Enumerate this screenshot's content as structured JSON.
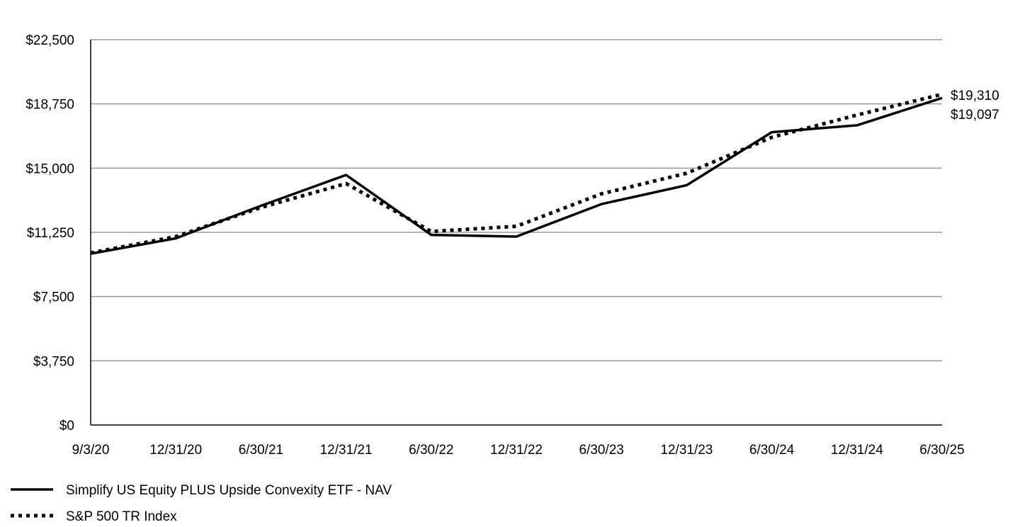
{
  "chart_data": {
    "type": "line",
    "title": "",
    "xlabel": "",
    "ylabel": "",
    "categories": [
      "9/3/20",
      "12/31/20",
      "6/30/21",
      "12/31/21",
      "6/30/22",
      "12/31/22",
      "6/30/23",
      "12/31/23",
      "6/30/24",
      "12/31/24",
      "6/30/25"
    ],
    "y_ticks": [
      "$0",
      "$3,750",
      "$7,500",
      "$11,250",
      "$15,000",
      "$18,750",
      "$22,500"
    ],
    "ylim": [
      0,
      22500
    ],
    "grid": true,
    "legend_position": "bottom-left",
    "series": [
      {
        "name": "Simplify US Equity PLUS Upside Convexity ETF - NAV",
        "style": "solid",
        "values": [
          10000,
          10900,
          12800,
          14600,
          11100,
          11000,
          12900,
          14000,
          17100,
          17500,
          19097
        ],
        "end_label": "$19,097"
      },
      {
        "name": "S&P 500 TR Index",
        "style": "dotted",
        "values": [
          10050,
          11000,
          12700,
          14100,
          11300,
          11600,
          13500,
          14700,
          16800,
          18100,
          19310
        ],
        "end_label": "$19,310"
      }
    ],
    "colors": {
      "line": "#000000",
      "grid": "#999999",
      "axis": "#000000"
    }
  }
}
